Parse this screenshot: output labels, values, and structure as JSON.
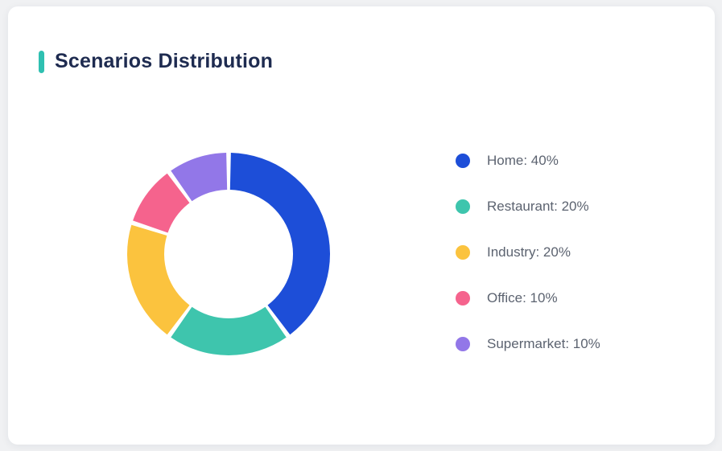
{
  "header": {
    "title": "Scenarios Distribution",
    "accent_color": "#2fc0b1"
  },
  "chart_data": {
    "type": "pie",
    "title": "Scenarios Distribution",
    "donut": true,
    "inner_radius_ratio": 0.635,
    "start_angle_deg": 0,
    "direction": "clockwise",
    "categories": [
      "Home",
      "Restaurant",
      "Industry",
      "Office",
      "Supermarket"
    ],
    "values": [
      40,
      20,
      20,
      10,
      10
    ],
    "unit": "%",
    "colors": [
      "#1d4ed8",
      "#3ec5ad",
      "#fbc33e",
      "#f5638d",
      "#9277e8"
    ],
    "legend_position": "right",
    "legend_labels": [
      "Home: 40%",
      "Restaurant: 20%",
      "Industry: 20%",
      "Office: 10%",
      "Supermarket: 10%"
    ]
  }
}
